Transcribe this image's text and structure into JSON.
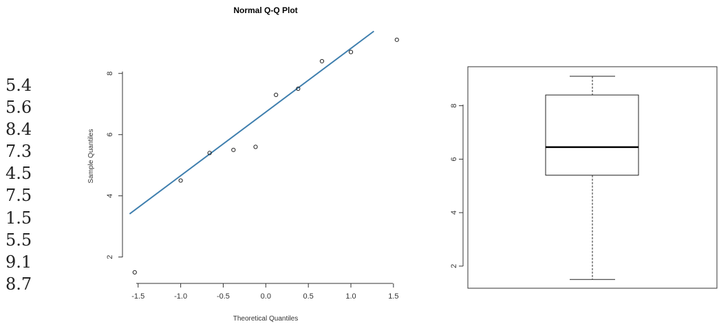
{
  "values_list": [
    "5.4",
    "5.6",
    "8.4",
    "7.3",
    "4.5",
    "7.5",
    "1.5",
    "5.5",
    "9.1",
    "8.7"
  ],
  "chart_data": [
    {
      "type": "scatter",
      "title": "Normal Q-Q Plot",
      "xlabel": "Theoretical Quantiles",
      "ylabel": "Sample Quantiles",
      "xlim": [
        -1.6,
        1.6
      ],
      "ylim": [
        1.2,
        9.6
      ],
      "x_ticks": [
        "-1.5",
        "-1.0",
        "-0.5",
        "0.0",
        "0.5",
        "1.0",
        "1.5"
      ],
      "y_ticks": [
        "2",
        "4",
        "6",
        "8"
      ],
      "points": [
        {
          "x": -1.54,
          "y": 1.5
        },
        {
          "x": -1.0,
          "y": 4.5
        },
        {
          "x": -0.66,
          "y": 5.4
        },
        {
          "x": -0.38,
          "y": 5.5
        },
        {
          "x": -0.12,
          "y": 5.6
        },
        {
          "x": 0.12,
          "y": 7.3
        },
        {
          "x": 0.38,
          "y": 7.5
        },
        {
          "x": 0.66,
          "y": 8.4
        },
        {
          "x": 1.0,
          "y": 8.7
        },
        {
          "x": 1.54,
          "y": 9.1
        }
      ],
      "reference_line": {
        "x": [
          -1.6,
          1.27
        ],
        "y": [
          3.41,
          9.38
        ]
      },
      "line_color": "#3f7fae",
      "grid": false
    },
    {
      "type": "box",
      "ylim": [
        1.2,
        9.6
      ],
      "y_ticks": [
        "2",
        "4",
        "6",
        "8"
      ],
      "stats": {
        "min": 1.5,
        "q1": 5.4,
        "median": 6.45,
        "q3": 8.4,
        "max": 9.1
      },
      "grid": false
    }
  ]
}
